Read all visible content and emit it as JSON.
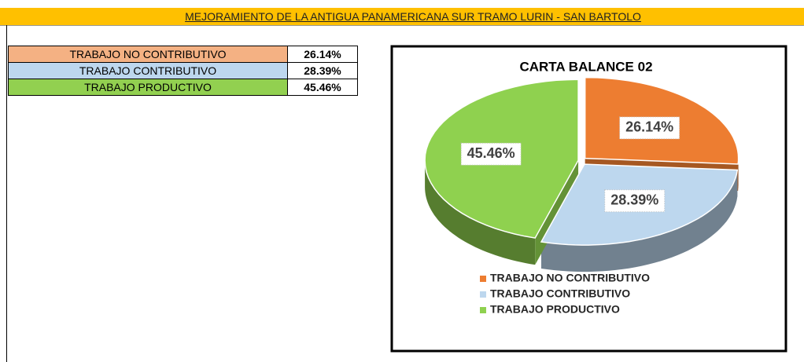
{
  "header": {
    "title": "MEJORAMIENTO DE LA ANTIGUA PANAMERICANA SUR TRAMO LURIN - SAN BARTOLO"
  },
  "table": {
    "rows": [
      [
        "TRABAJO NO CONTRIBUTIVO",
        "26.14%"
      ],
      [
        "TRABAJO CONTRIBUTIVO",
        "28.39%"
      ],
      [
        "TRABAJO PRODUCTIVO",
        "45.46%"
      ]
    ],
    "colors": [
      "#f4b183",
      "#bdd7ee",
      "#92d050"
    ]
  },
  "chart_data": {
    "type": "pie",
    "title": "CARTA BALANCE 02",
    "categories": [
      "TRABAJO NO CONTRIBUTIVO",
      "TRABAJO CONTRIBUTIVO",
      "TRABAJO PRODUCTIVO"
    ],
    "values": [
      26.14,
      28.39,
      45.46
    ],
    "value_labels": [
      "26.14%",
      "28.39%",
      "45.46%"
    ],
    "colors": [
      "#ed7d31",
      "#bdd7ee",
      "#8fd14f"
    ],
    "legend": "bottom"
  }
}
